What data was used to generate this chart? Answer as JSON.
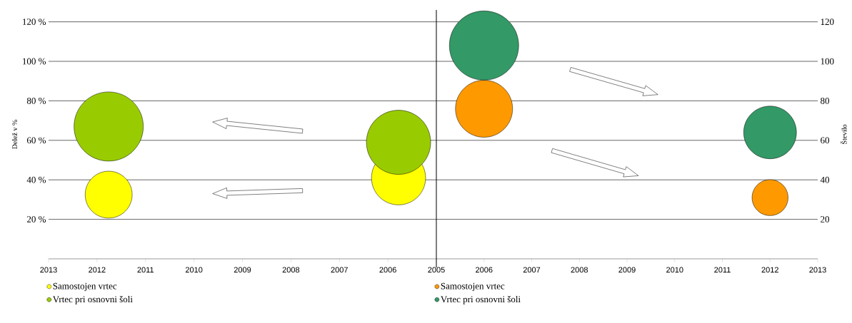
{
  "chart_data": [
    {
      "type": "bubble",
      "xlim": [
        2013,
        2005
      ],
      "xticks": [
        2013,
        2012,
        2011,
        2010,
        2009,
        2008,
        2007,
        2006
      ],
      "ylim": [
        0,
        126
      ],
      "yticks": [
        {
          "value": 20,
          "label": "20 %"
        },
        {
          "value": 40,
          "label": "40 %"
        },
        {
          "value": 60,
          "label": "60 %"
        },
        {
          "value": 80,
          "label": "80 %"
        },
        {
          "value": 100,
          "label": "100 %"
        },
        {
          "value": 120,
          "label": "120 %"
        }
      ],
      "ylabel": "Delež v %",
      "grid": "y",
      "legend": "bottom",
      "series": [
        {
          "name": "Samostojen vrtec",
          "color": "#ffff00",
          "x": [
            2011.76,
            2005.78
          ],
          "values": [
            32.5,
            41
          ],
          "sizes": [
            0.46,
            0.61
          ]
        },
        {
          "name": "Vrtec pri osnovni šoli",
          "color": "#99cc00",
          "x": [
            2011.76,
            2005.78
          ],
          "values": [
            67,
            59
          ],
          "sizes": [
            1,
            0.86
          ]
        }
      ]
    },
    {
      "type": "bubble",
      "xlim": [
        2005,
        2013
      ],
      "xticks": [
        2005,
        2006,
        2007,
        2008,
        2009,
        2010,
        2011,
        2012,
        2013
      ],
      "y2lim": [
        0,
        126
      ],
      "y2ticks": [
        20,
        40,
        60,
        80,
        100,
        120
      ],
      "y2label": "Število",
      "grid": "y",
      "legend": "bottom",
      "series": [
        {
          "name": "Samostojen vrtec",
          "color": "#ff9900",
          "axis": "y2",
          "x": [
            2006,
            2012
          ],
          "values": [
            76,
            31
          ],
          "sizes": [
            0.68,
            0.27
          ]
        },
        {
          "name": "Vrtec pri osnovni šoli",
          "color": "#339966",
          "axis": "y2",
          "x": [
            2006,
            2012
          ],
          "values": [
            108,
            64
          ],
          "sizes": [
            1,
            0.58
          ]
        }
      ]
    }
  ]
}
